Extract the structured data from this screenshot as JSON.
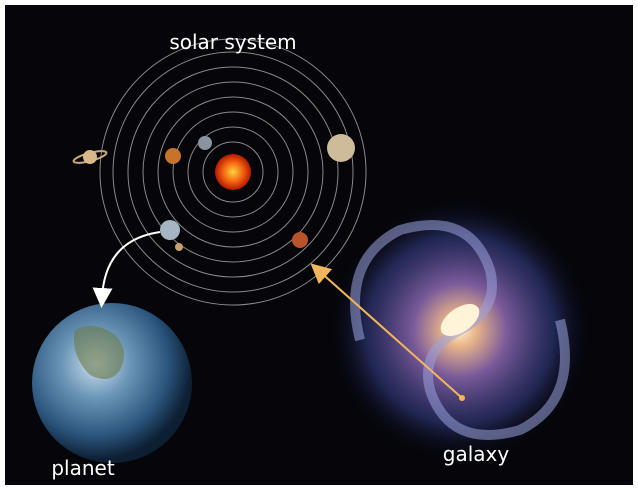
{
  "labels": {
    "solar_system": "solar system",
    "planet": "planet",
    "galaxy": "galaxy"
  }
}
